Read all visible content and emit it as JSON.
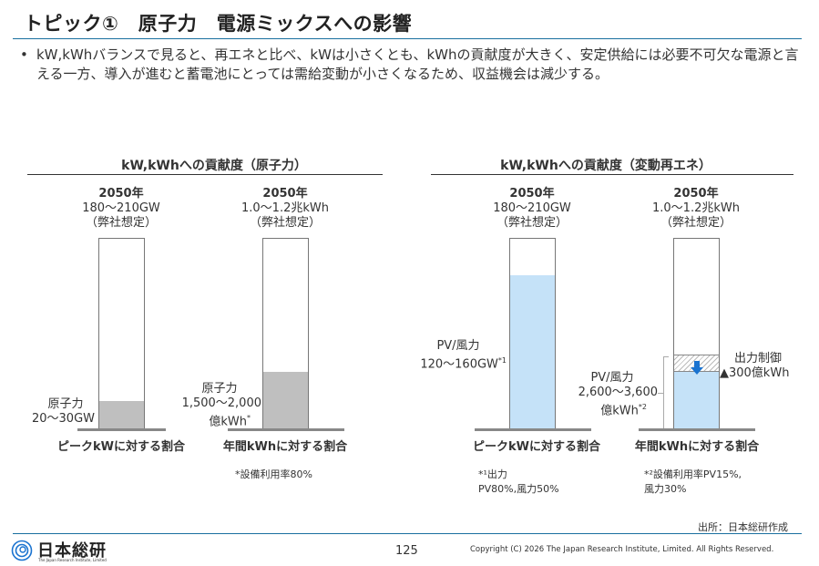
{
  "header": {
    "title": "トピック①　原子力　電源ミックスへの影響"
  },
  "bullet": {
    "symbol": "•",
    "text": "kW,kWhバランスで見ると、再エネと比べ、kWは小さくとも、kWhの貢献度が大きく、安定供給には必要不可欠な電源と言える一方、導入が進むと蓄電池にとっては需給変動が小さくなるため、収益機会は減少する。"
  },
  "left_section": {
    "title": "kW,kWhへの貢献度（原子力）",
    "bars": [
      {
        "year": "2050年",
        "total": "180～210GW",
        "note": "（弊社想定）",
        "segment_label_1": "原子力",
        "segment_label_2": "20～30GW",
        "share": 0.15,
        "fill_color": "#bfbfbf",
        "axis_label": "ピークkWに対する割合"
      },
      {
        "year": "2050年",
        "total": "1.0～1.2兆kWh",
        "note": "（弊社想定）",
        "segment_label_1": "原子力",
        "segment_label_2": "1,500～2,000",
        "segment_label_3": "億kWh",
        "segment_sup": "*",
        "share": 0.3,
        "fill_color": "#bfbfbf",
        "axis_label": "年間kWhに対する割合",
        "footnote": "*設備利用率80%"
      }
    ]
  },
  "right_section": {
    "title": "kW,kWhへの貢献度（変動再エネ）",
    "bars": [
      {
        "year": "2050年",
        "total": "180～210GW",
        "note": "（弊社想定）",
        "segment_label_1": "PV/風力",
        "segment_label_2": "120～160GW",
        "segment_sup": "*1",
        "share": 0.81,
        "fill_color": "#c5e2f8",
        "axis_label": "ピークkWに対する割合",
        "footnote_1": "*¹出力",
        "footnote_2": "PV80%,風力50%"
      },
      {
        "year": "2050年",
        "total": "1.0～1.2兆kWh",
        "note": "（弊社想定）",
        "segment_label_1": "PV/風力",
        "segment_label_2": "2,600～3,600",
        "segment_label_3": "億kWh",
        "segment_sup": "*2",
        "share": 0.3,
        "curtail_share": 0.08,
        "fill_color": "#c5e2f8",
        "curtail_label_1": "出力制御",
        "curtail_label_2": "▲300億kWh",
        "arrow_color": "#1a73d0",
        "axis_label": "年間kWhに対する割合",
        "footnote_1": "*²設備利用率PV15%,",
        "footnote_2": "風力30%"
      }
    ]
  },
  "source": "出所：日本総研作成",
  "footer": {
    "logo_text": "日本総研",
    "logo_subtext": "The Japan Research Institute, Limited",
    "page_number": "125",
    "copyright": "Copyright (C) 2026 The Japan Research Institute, Limited. All Rights Reserved.",
    "accent_color": "#1a6f9f"
  }
}
